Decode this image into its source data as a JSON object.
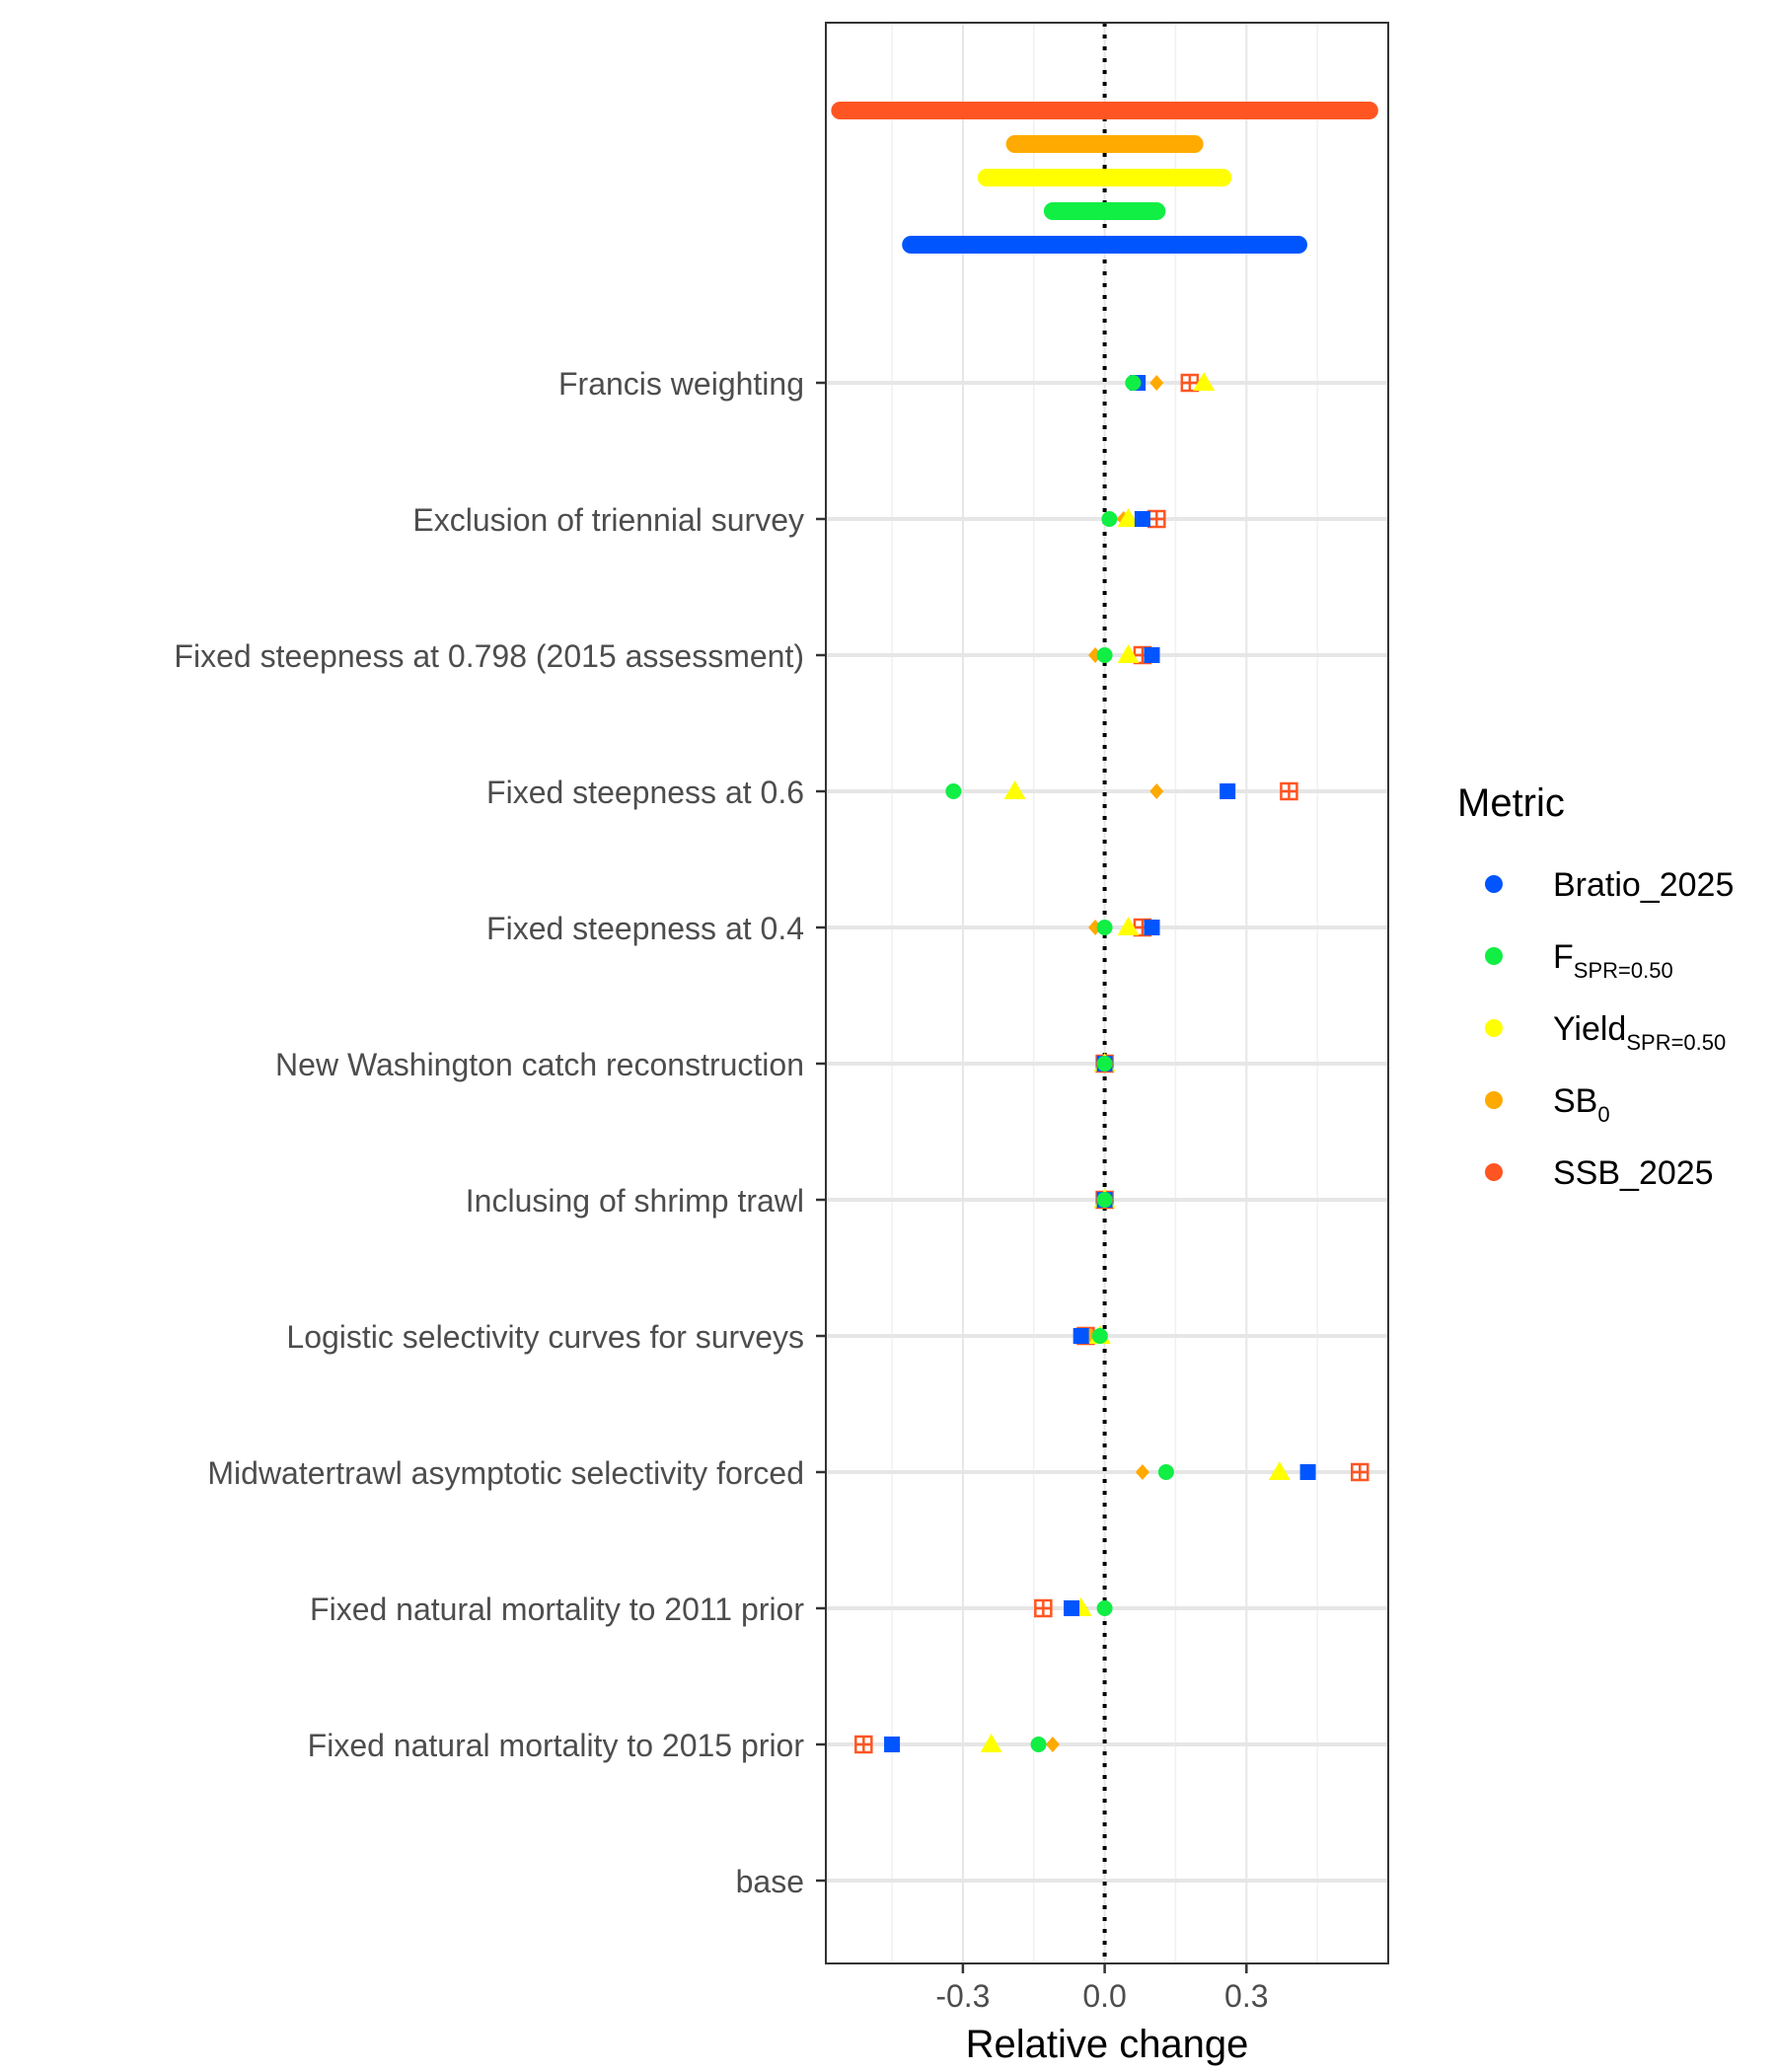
{
  "chart_data": {
    "type": "scatter",
    "xlabel": "Relative change",
    "ylabel": "",
    "xlim": [
      -0.59,
      0.6
    ],
    "xticks": [
      "-0.3",
      "0.0",
      "0.3"
    ],
    "xtick_values": [
      -0.3,
      0.0,
      0.3
    ],
    "grid": true,
    "reference_line_x": 0,
    "legend": {
      "title": "Metric",
      "placement": "right",
      "entries": [
        {
          "key": "Bratio",
          "label": "Bratio_2025",
          "sub": "",
          "color": "#0055ff"
        },
        {
          "key": "F",
          "label": "F",
          "sub": "SPR=0.50",
          "color": "#11ee44"
        },
        {
          "key": "Yield",
          "label": "Yield",
          "sub": "SPR=0.50",
          "color": "#ffff00"
        },
        {
          "key": "SB0",
          "label": "SB",
          "sub": "0",
          "color": "#ffaa00"
        },
        {
          "key": "SSB",
          "label": "SSB_2025",
          "sub": "",
          "color": "#ff5522"
        }
      ]
    },
    "ranges": [
      {
        "metric": "SSB",
        "min": -0.56,
        "max": 0.56
      },
      {
        "metric": "SB0",
        "min": -0.19,
        "max": 0.19
      },
      {
        "metric": "Yield",
        "min": -0.25,
        "max": 0.25
      },
      {
        "metric": "F",
        "min": -0.11,
        "max": 0.11
      },
      {
        "metric": "Bratio",
        "min": -0.41,
        "max": 0.41
      }
    ],
    "categories": [
      "Francis weighting",
      "Exclusion of triennial survey",
      "Fixed steepness at 0.798 (2015 assessment)",
      "Fixed steepness at 0.6",
      "Fixed steepness at 0.4",
      "New Washington catch reconstruction",
      "Inclusing of shrimp trawl",
      "Logistic selectivity curves for surveys",
      "Midwatertrawl asymptotic selectivity forced",
      "Fixed natural mortality to 2011 prior",
      "Fixed natural mortality to 2015 prior",
      "base"
    ],
    "series": [
      {
        "metric": "SSB",
        "shape": "square-plus",
        "values": [
          0.18,
          0.11,
          0.08,
          0.39,
          0.08,
          0.0,
          0.0,
          -0.04,
          0.54,
          -0.13,
          -0.51,
          null
        ]
      },
      {
        "metric": "SB0",
        "shape": "diamond",
        "values": [
          0.11,
          0.04,
          -0.02,
          0.11,
          -0.02,
          0.0,
          0.0,
          -0.03,
          0.08,
          -0.05,
          -0.11,
          null
        ]
      },
      {
        "metric": "Yield",
        "shape": "triangle",
        "values": [
          0.21,
          0.05,
          0.05,
          -0.19,
          0.05,
          0.0,
          0.0,
          -0.01,
          0.37,
          -0.05,
          -0.24,
          null
        ]
      },
      {
        "metric": "Bratio",
        "shape": "square",
        "values": [
          0.07,
          0.08,
          0.1,
          0.26,
          0.1,
          0.0,
          0.0,
          -0.05,
          0.43,
          -0.07,
          -0.45,
          null
        ]
      },
      {
        "metric": "F",
        "shape": "circle",
        "values": [
          0.06,
          0.01,
          0.0,
          -0.32,
          0.0,
          0.0,
          0.0,
          -0.01,
          0.13,
          0.0,
          -0.14,
          null
        ]
      }
    ]
  }
}
